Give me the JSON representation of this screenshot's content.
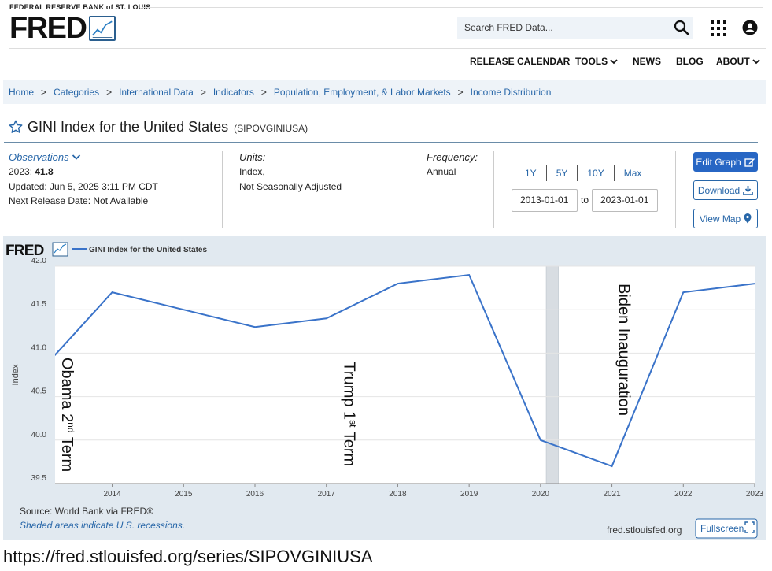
{
  "header": {
    "org_label": "FEDERAL RESERVE BANK of ST. LOUIS",
    "logo_text": "FRED",
    "search_placeholder": "Search FRED Data...",
    "nav": {
      "release_calendar": "RELEASE CALENDAR",
      "tools": "TOOLS",
      "news": "NEWS",
      "blog": "BLOG",
      "about": "ABOUT"
    }
  },
  "breadcrumb": [
    "Home",
    "Categories",
    "International Data",
    "Indicators",
    "Population, Employment, & Labor Markets",
    "Income Distribution"
  ],
  "series": {
    "title": "GINI Index for the United States",
    "id": "(SIPOVGINIUSA)"
  },
  "observations": {
    "label": "Observations",
    "year_prefix": "2023: ",
    "value": "41.8",
    "updated": "Updated: Jun 5, 2025 3:11 PM CDT",
    "next_release": "Next Release Date: Not Available"
  },
  "units": {
    "label": "Units:",
    "line1": "Index,",
    "line2": "Not Seasonally Adjusted"
  },
  "frequency": {
    "label": "Frequency:",
    "value": "Annual"
  },
  "range": {
    "buttons": [
      "1Y",
      "5Y",
      "10Y",
      "Max"
    ],
    "from": "2013-01-01",
    "to_label": "to",
    "to": "2023-01-01"
  },
  "actions": {
    "edit_graph": "Edit Graph",
    "download": "Download",
    "view_map": "View Map"
  },
  "chart_footer": {
    "source": "Source: World Bank via FRED®",
    "recession_note": "Shaded areas indicate U.S. recessions.",
    "site": "fred.stlouisfed.org",
    "fullscreen": "Fullscreen"
  },
  "url_caption": "https://fred.stlouisfed.org/series/SIPOVGINIUSA",
  "colors": {
    "line": "#3a73c9",
    "chart_bg": "#e1e9f0",
    "link": "#2766a8",
    "recession": "#d8dde2"
  },
  "chart_data": {
    "type": "line",
    "logo_text": "FRED",
    "legend": "GINI Index for the United States",
    "ylabel": "Index",
    "ylim": [
      39.5,
      42.0
    ],
    "yticks": [
      "42.0",
      "41.5",
      "41.0",
      "40.5",
      "40.0",
      "39.5"
    ],
    "ytick_values": [
      42.0,
      41.5,
      41.0,
      40.5,
      40.0,
      39.5
    ],
    "xlim": [
      2013.2,
      2023.0
    ],
    "xticks": [
      "2014",
      "2015",
      "2016",
      "2017",
      "2018",
      "2019",
      "2020",
      "2021",
      "2022",
      "2023"
    ],
    "xtick_values": [
      2014,
      2015,
      2016,
      2017,
      2018,
      2019,
      2020,
      2021,
      2022,
      2023
    ],
    "series": [
      {
        "name": "GINI Index for the United States",
        "x": [
          2013,
          2014,
          2015,
          2016,
          2017,
          2018,
          2019,
          2020,
          2021,
          2022,
          2023
        ],
        "values": [
          40.8,
          41.7,
          41.5,
          41.3,
          41.4,
          41.8,
          41.9,
          40.0,
          39.7,
          41.7,
          41.8
        ]
      }
    ],
    "recessions": [
      [
        2020.08,
        2020.25
      ]
    ],
    "annotations": [
      {
        "text": "Obama 2",
        "sup": "nd",
        "tail": " Term",
        "x": 2013.3,
        "y": 40.95
      },
      {
        "text": "Trump 1",
        "sup": "st",
        "tail": " Term",
        "x": 2017.25,
        "y": 40.9
      },
      {
        "text": "Biden Inauguration",
        "sup": "",
        "tail": "",
        "x": 2021.1,
        "y": 41.8
      }
    ]
  }
}
